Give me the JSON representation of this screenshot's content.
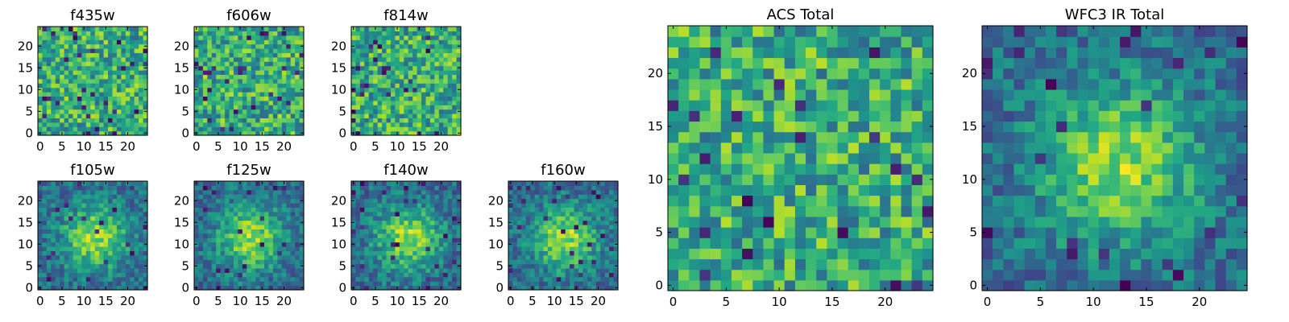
{
  "figure": {
    "rows": 2
  },
  "chart_data": [
    {
      "type": "heatmap",
      "title": "f435w",
      "grid": 25,
      "x_ticks": [
        0,
        5,
        10,
        15,
        20
      ],
      "y_ticks": [
        0,
        5,
        10,
        15,
        20
      ],
      "xlim": [
        -0.5,
        24.5
      ],
      "ylim": [
        -0.5,
        24.5
      ],
      "colormap": "viridis",
      "structure": "noise",
      "seed": 11,
      "vmin_fraction": 0.0
    },
    {
      "type": "heatmap",
      "title": "f606w",
      "grid": 25,
      "x_ticks": [
        0,
        5,
        10,
        15,
        20
      ],
      "y_ticks": [
        0,
        5,
        10,
        15,
        20
      ],
      "xlim": [
        -0.5,
        24.5
      ],
      "ylim": [
        -0.5,
        24.5
      ],
      "colormap": "viridis",
      "structure": "noise",
      "seed": 23
    },
    {
      "type": "heatmap",
      "title": "f814w",
      "grid": 25,
      "x_ticks": [
        0,
        5,
        10,
        15,
        20
      ],
      "y_ticks": [
        0,
        5,
        10,
        15,
        20
      ],
      "xlim": [
        -0.5,
        24.5
      ],
      "ylim": [
        -0.5,
        24.5
      ],
      "colormap": "viridis",
      "structure": "noise",
      "seed": 37
    },
    {
      "type": "heatmap",
      "title": "f105w",
      "grid": 25,
      "x_ticks": [
        0,
        5,
        10,
        15,
        20
      ],
      "y_ticks": [
        0,
        5,
        10,
        15,
        20
      ],
      "xlim": [
        -0.5,
        24.5
      ],
      "ylim": [
        -0.5,
        24.5
      ],
      "colormap": "viridis",
      "structure": "source",
      "seed": 41
    },
    {
      "type": "heatmap",
      "title": "f125w",
      "grid": 25,
      "x_ticks": [
        0,
        5,
        10,
        15,
        20
      ],
      "y_ticks": [
        0,
        5,
        10,
        15,
        20
      ],
      "xlim": [
        -0.5,
        24.5
      ],
      "ylim": [
        -0.5,
        24.5
      ],
      "colormap": "viridis",
      "structure": "source",
      "seed": 53
    },
    {
      "type": "heatmap",
      "title": "f140w",
      "grid": 25,
      "x_ticks": [
        0,
        5,
        10,
        15,
        20
      ],
      "y_ticks": [
        0,
        5,
        10,
        15,
        20
      ],
      "xlim": [
        -0.5,
        24.5
      ],
      "ylim": [
        -0.5,
        24.5
      ],
      "colormap": "viridis",
      "structure": "source",
      "seed": 67
    },
    {
      "type": "heatmap",
      "title": "f160w",
      "grid": 25,
      "x_ticks": [
        0,
        5,
        10,
        15,
        20
      ],
      "y_ticks": [
        0,
        5,
        10,
        15,
        20
      ],
      "xlim": [
        -0.5,
        24.5
      ],
      "ylim": [
        -0.5,
        24.5
      ],
      "colormap": "viridis",
      "structure": "source",
      "seed": 71
    },
    {
      "type": "heatmap",
      "title": "ACS Total",
      "grid": 25,
      "x_ticks": [
        0,
        5,
        10,
        15,
        20
      ],
      "y_ticks": [
        0,
        5,
        10,
        15,
        20
      ],
      "xlim": [
        -0.5,
        24.5
      ],
      "ylim": [
        -0.5,
        24.5
      ],
      "colormap": "viridis",
      "structure": "noise",
      "seed": 83
    },
    {
      "type": "heatmap",
      "title": "WFC3 IR Total",
      "grid": 25,
      "x_ticks": [
        0,
        5,
        10,
        15,
        20
      ],
      "y_ticks": [
        0,
        5,
        10,
        15,
        20
      ],
      "xlim": [
        -0.5,
        24.5
      ],
      "ylim": [
        -0.5,
        24.5
      ],
      "colormap": "viridis",
      "structure": "source",
      "seed": 97
    }
  ]
}
